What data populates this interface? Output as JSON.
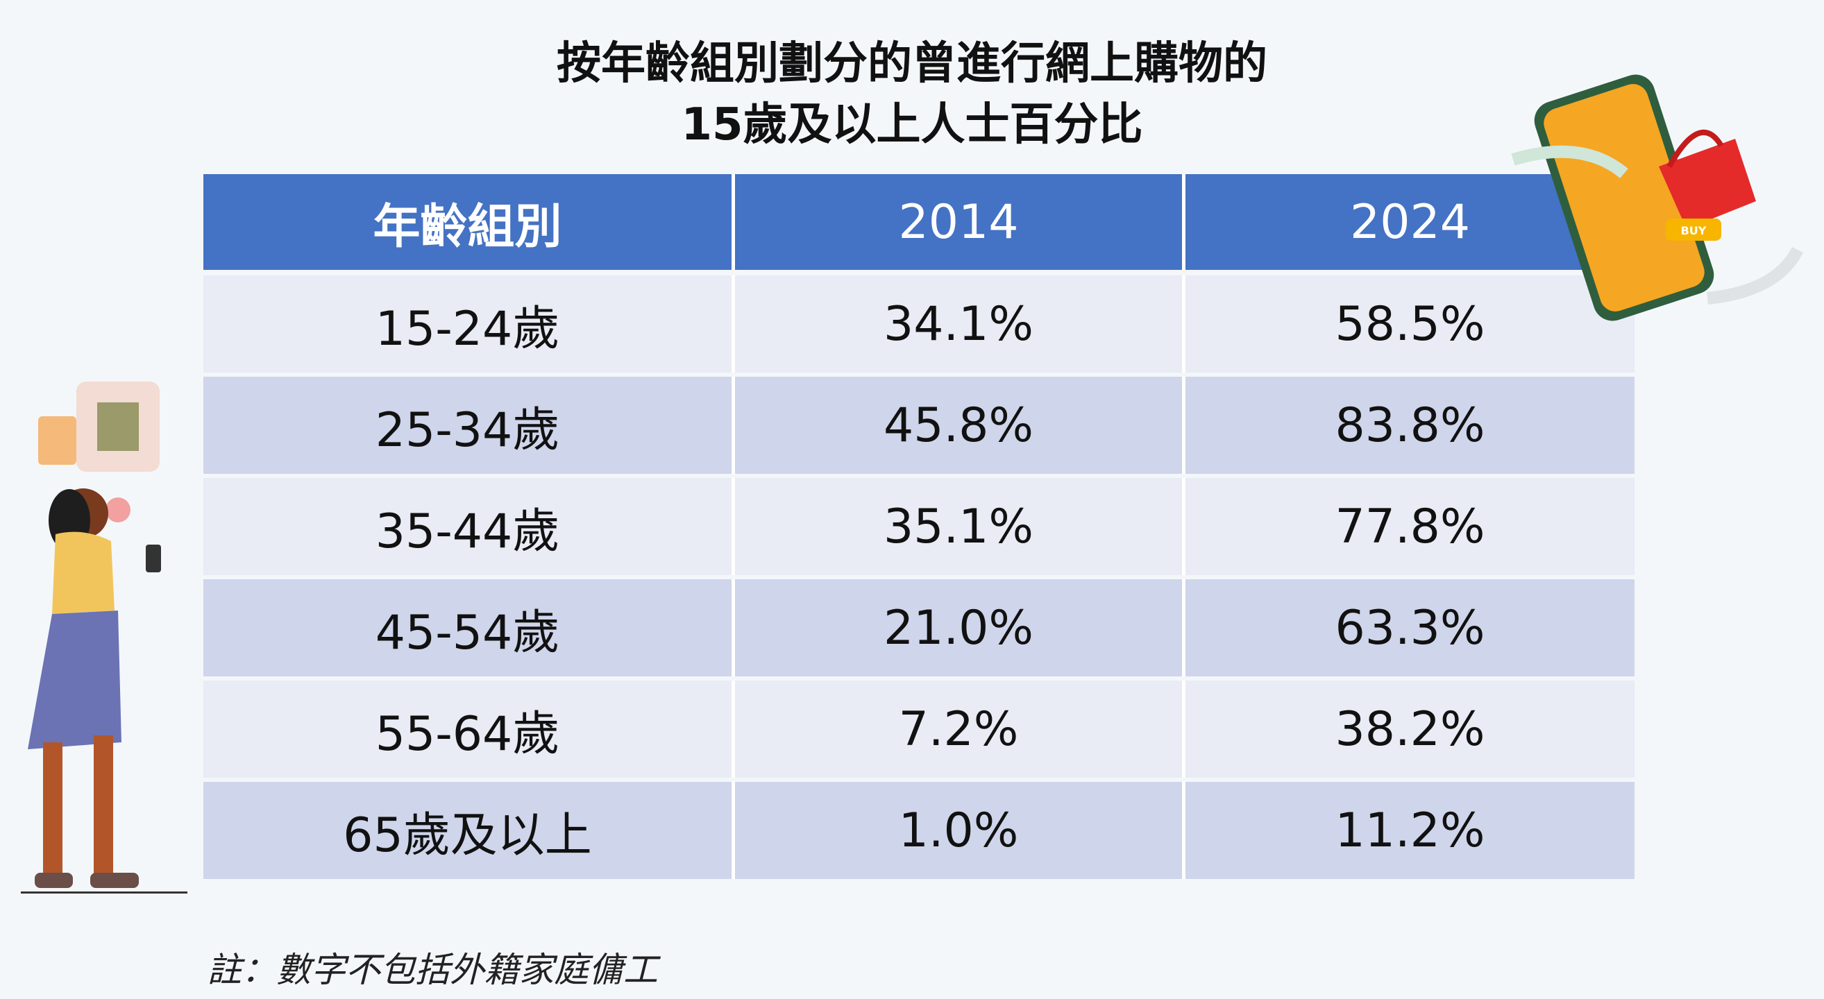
{
  "title": {
    "line1": "按年齡組別劃分的曾進行網上購物的",
    "line2": "15歲及以上人士百分比"
  },
  "table": {
    "headers": [
      "年齡組別",
      "2014",
      "2024"
    ],
    "rows": [
      [
        "15-24歲",
        "34.1%",
        "58.5%"
      ],
      [
        "25-34歲",
        "45.8%",
        "83.8%"
      ],
      [
        "35-44歲",
        "35.1%",
        "77.8%"
      ],
      [
        "45-54歲",
        "21.0%",
        "63.3%"
      ],
      [
        "55-64歲",
        "7.2%",
        "38.2%"
      ],
      [
        "65歲及以上",
        "1.0%",
        "11.2%"
      ]
    ]
  },
  "note": "註：數字不包括外籍家庭傭工",
  "illustration": {
    "buy_label": "BUY"
  },
  "colors": {
    "header": "#4472c4",
    "row_light": "#e9ebf5",
    "row_dark": "#cfd5ea",
    "background": "#f4f7fa"
  }
}
